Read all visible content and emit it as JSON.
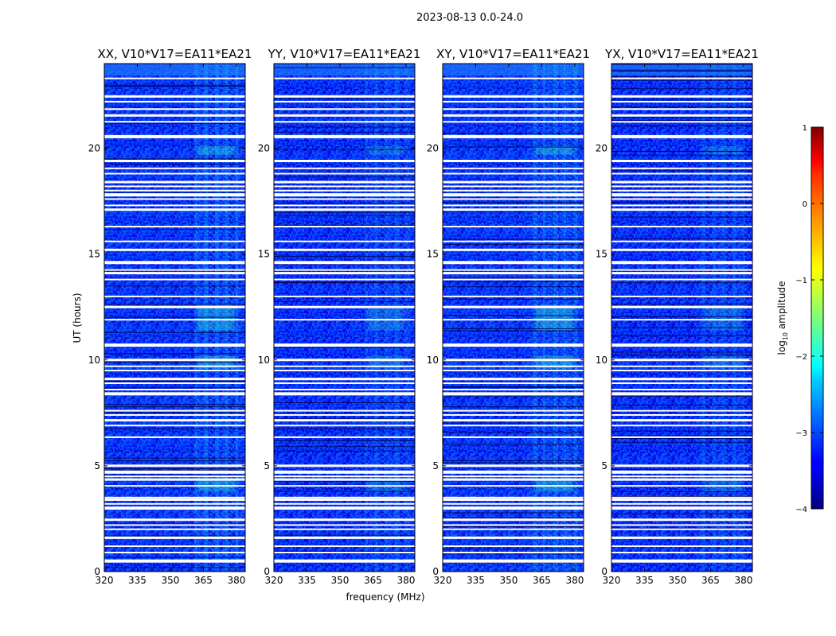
{
  "figure": {
    "title": "2023-08-13 0.0-24.0"
  },
  "chart_data": {
    "type": "heatmap",
    "xlabel": "frequency (MHz)",
    "ylabel": "UT (hours)",
    "xlim": [
      320,
      384
    ],
    "ylim": [
      0,
      24
    ],
    "x_ticks": [
      320,
      335,
      350,
      365,
      380
    ],
    "y_ticks": [
      0,
      5,
      10,
      15,
      20
    ],
    "panels": [
      {
        "title": "XX, V10*V17=EA11*EA21",
        "level": 0.5
      },
      {
        "title": "YY, V10*V17=EA11*EA21",
        "level": 0.32
      },
      {
        "title": "XY, V10*V17=EA11*EA21",
        "level": 0.5
      },
      {
        "title": "YX, V10*V17=EA11*EA21",
        "level": 0.3
      }
    ],
    "flagged_hours": [
      0.5,
      0.9,
      1.2,
      1.6,
      2.0,
      2.2,
      2.45,
      3.0,
      3.2,
      3.4,
      3.5,
      4.05,
      4.35,
      4.5,
      4.7,
      5.0,
      6.35,
      6.9,
      7.15,
      7.4,
      7.6,
      8.4,
      8.6,
      8.9,
      9.1,
      9.5,
      9.7,
      10.0,
      10.7,
      11.9,
      12.5,
      13.0,
      13.8,
      14.1,
      14.25,
      14.6,
      15.2,
      15.6,
      16.3,
      17.1,
      17.3,
      17.6,
      17.8,
      18.0,
      18.2,
      18.4,
      18.8,
      19.05,
      19.4,
      20.55,
      21.25,
      21.55,
      21.85,
      22.2,
      22.45,
      23.3
    ],
    "rfi_band_mhz": [
      361,
      382
    ],
    "rfi_bright_hours": [
      [
        19.7,
        20.1
      ],
      [
        9.6,
        10.2
      ],
      [
        11.4,
        12.6
      ],
      [
        3.8,
        4.3
      ]
    ],
    "colorbar": {
      "label": "log",
      "label_sub": "10",
      "label_suffix": " amplitude",
      "range": [
        -4,
        1
      ],
      "ticks": [
        "1",
        "0",
        "−1",
        "−2",
        "−3",
        "−4"
      ],
      "colormap": "jet"
    }
  }
}
